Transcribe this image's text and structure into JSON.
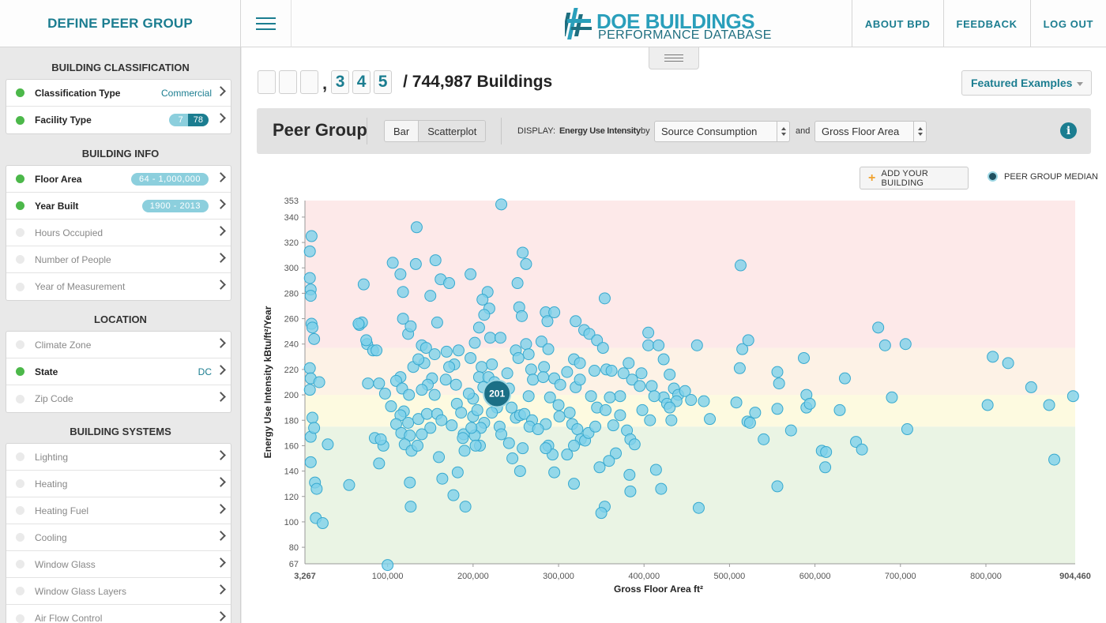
{
  "header": {
    "left_title": "DEFINE PEER GROUP",
    "logo_line1": "DOE BUILDINGS",
    "logo_line2": "PERFORMANCE DATABASE",
    "nav": [
      "ABOUT BPD",
      "FEEDBACK",
      "LOG OUT"
    ]
  },
  "sidebar": {
    "sections": [
      {
        "title": "BUILDING CLASSIFICATION",
        "items": [
          {
            "label": "Classification Type",
            "active": true,
            "value": "Commercial"
          },
          {
            "label": "Facility Type",
            "active": true,
            "pill_a": "7",
            "pill_b": "78"
          }
        ]
      },
      {
        "title": "BUILDING INFO",
        "items": [
          {
            "label": "Floor Area",
            "active": true,
            "pill": "64 - 1,000,000"
          },
          {
            "label": "Year Built",
            "active": true,
            "pill": "1900 - 2013"
          },
          {
            "label": "Hours Occupied",
            "active": false
          },
          {
            "label": "Number of People",
            "active": false
          },
          {
            "label": "Year of Measurement",
            "active": false
          }
        ]
      },
      {
        "title": "LOCATION",
        "items": [
          {
            "label": "Climate Zone",
            "active": false
          },
          {
            "label": "State",
            "active": true,
            "value": "DC"
          },
          {
            "label": "Zip Code",
            "active": false
          }
        ]
      },
      {
        "title": "BUILDING SYSTEMS",
        "items": [
          {
            "label": "Lighting",
            "active": false
          },
          {
            "label": "Heating",
            "active": false
          },
          {
            "label": "Heating Fuel",
            "active": false
          },
          {
            "label": "Cooling",
            "active": false
          },
          {
            "label": "Window Glass",
            "active": false
          },
          {
            "label": "Window Glass Layers",
            "active": false
          },
          {
            "label": "Air Flow Control",
            "active": false
          }
        ]
      }
    ]
  },
  "counter": {
    "digits": [
      "",
      "",
      "",
      "3",
      "4",
      "5"
    ],
    "total": "/ 744,987 Buildings"
  },
  "featured_examples": "Featured Examples",
  "toolbar": {
    "title": "Peer Group",
    "bar_label": "Bar",
    "scatter_label": "Scatterplot",
    "display_label": "DISPLAY:",
    "metric": "Energy Use Intensity",
    "by": "by",
    "select1": "Source Consumption",
    "and": "and",
    "select2": "Gross Floor Area",
    "info": "i"
  },
  "add_building": "ADD YOUR BUILDING",
  "legend_label": "PEER GROUP MEDIAN",
  "chart_data": {
    "type": "scatter",
    "xlabel": "Gross Floor Area ft²",
    "ylabel": "Energy Use Intensity kBtu/ft²/Year",
    "xlim": [
      3267,
      904460
    ],
    "ylim": [
      67,
      353
    ],
    "x_ticks": [
      100000,
      200000,
      300000,
      400000,
      500000,
      600000,
      700000,
      800000
    ],
    "x_tick_labels": [
      "100,000",
      "200,000",
      "300,000",
      "400,000",
      "500,000",
      "600,000",
      "700,000",
      "800,000"
    ],
    "x_end_labels": [
      "3,267",
      "904,460"
    ],
    "y_ticks": [
      80,
      100,
      120,
      140,
      160,
      180,
      200,
      220,
      240,
      260,
      280,
      300,
      320,
      340
    ],
    "y_end_labels": [
      "67",
      "353"
    ],
    "bands": [
      {
        "from": 67,
        "to": 175,
        "color": "#eaf4e4"
      },
      {
        "from": 175,
        "to": 200,
        "color": "#fdfae0"
      },
      {
        "from": 200,
        "to": 237,
        "color": "#fdf2e6"
      },
      {
        "from": 237,
        "to": 353,
        "color": "#fde9e9"
      }
    ],
    "point_color": "#7ed1ea",
    "point_stroke": "#37a9cf",
    "median": {
      "x": 228000,
      "y": 201,
      "label": "201",
      "color": "#1b6f86"
    },
    "points": [
      [
        9000,
        313
      ],
      [
        11000,
        325
      ],
      [
        9000,
        292
      ],
      [
        10000,
        283
      ],
      [
        10000,
        278
      ],
      [
        11000,
        256
      ],
      [
        12000,
        253
      ],
      [
        14000,
        244
      ],
      [
        9000,
        221
      ],
      [
        10000,
        213
      ],
      [
        9000,
        204
      ],
      [
        20000,
        210
      ],
      [
        12000,
        182
      ],
      [
        10000,
        167
      ],
      [
        14000,
        174
      ],
      [
        10000,
        147
      ],
      [
        15000,
        131
      ],
      [
        17000,
        126
      ],
      [
        16000,
        103
      ],
      [
        24000,
        99
      ],
      [
        30000,
        161
      ],
      [
        55000,
        129
      ],
      [
        72000,
        287
      ],
      [
        67000,
        255
      ],
      [
        70000,
        257
      ],
      [
        76000,
        240
      ],
      [
        83000,
        235
      ],
      [
        87000,
        235
      ],
      [
        77000,
        209
      ],
      [
        90000,
        209
      ],
      [
        97000,
        201
      ],
      [
        95000,
        160
      ],
      [
        85000,
        166
      ],
      [
        92000,
        165
      ],
      [
        90000,
        146
      ],
      [
        106000,
        304
      ],
      [
        115000,
        295
      ],
      [
        118000,
        281
      ],
      [
        133000,
        303
      ],
      [
        134000,
        332
      ],
      [
        124000,
        248
      ],
      [
        127000,
        254
      ],
      [
        140000,
        239
      ],
      [
        130000,
        222
      ],
      [
        115000,
        214
      ],
      [
        110000,
        211
      ],
      [
        117000,
        205
      ],
      [
        125000,
        200
      ],
      [
        119000,
        187
      ],
      [
        115000,
        184
      ],
      [
        124000,
        178
      ],
      [
        110000,
        177
      ],
      [
        116000,
        170
      ],
      [
        126000,
        168
      ],
      [
        120000,
        161
      ],
      [
        128000,
        156
      ],
      [
        104000,
        191
      ],
      [
        126000,
        131
      ],
      [
        127000,
        112
      ],
      [
        100000,
        66
      ],
      [
        156000,
        306
      ],
      [
        150000,
        278
      ],
      [
        162000,
        291
      ],
      [
        172000,
        288
      ],
      [
        145000,
        237
      ],
      [
        155000,
        232
      ],
      [
        158000,
        257
      ],
      [
        143000,
        225
      ],
      [
        136000,
        228
      ],
      [
        152000,
        213
      ],
      [
        147000,
        208
      ],
      [
        140000,
        204
      ],
      [
        155000,
        200
      ],
      [
        136000,
        181
      ],
      [
        150000,
        174
      ],
      [
        140000,
        169
      ],
      [
        146000,
        185
      ],
      [
        158000,
        185
      ],
      [
        163000,
        180
      ],
      [
        135000,
        160
      ],
      [
        160000,
        151
      ],
      [
        164000,
        134
      ],
      [
        169000,
        234
      ],
      [
        183000,
        235
      ],
      [
        178000,
        224
      ],
      [
        172000,
        222
      ],
      [
        168000,
        212
      ],
      [
        180000,
        208
      ],
      [
        181000,
        193
      ],
      [
        186000,
        186
      ],
      [
        175000,
        176
      ],
      [
        189000,
        169
      ],
      [
        200000,
        183
      ],
      [
        182000,
        139
      ],
      [
        177000,
        121
      ],
      [
        191000,
        112
      ],
      [
        197000,
        295
      ],
      [
        217000,
        281
      ],
      [
        211000,
        275
      ],
      [
        219000,
        268
      ],
      [
        207000,
        253
      ],
      [
        213000,
        263
      ],
      [
        220000,
        245
      ],
      [
        202000,
        241
      ],
      [
        197000,
        229
      ],
      [
        210000,
        222
      ],
      [
        207000,
        214
      ],
      [
        212000,
        206
      ],
      [
        200000,
        197
      ],
      [
        205000,
        188
      ],
      [
        195000,
        201
      ],
      [
        222000,
        224
      ],
      [
        218000,
        214
      ],
      [
        225000,
        210
      ],
      [
        232000,
        200
      ],
      [
        228000,
        190
      ],
      [
        222000,
        186
      ],
      [
        213000,
        178
      ],
      [
        209000,
        174
      ],
      [
        202000,
        168
      ],
      [
        208000,
        160
      ],
      [
        188000,
        166
      ],
      [
        198000,
        174
      ],
      [
        231000,
        175
      ],
      [
        233000,
        169
      ],
      [
        240000,
        217
      ],
      [
        250000,
        235
      ],
      [
        242000,
        205
      ],
      [
        245000,
        190
      ],
      [
        250000,
        182
      ],
      [
        246000,
        150
      ],
      [
        255000,
        140
      ],
      [
        258000,
        158
      ],
      [
        233000,
        350
      ],
      [
        258000,
        312
      ],
      [
        262000,
        303
      ],
      [
        252000,
        288
      ],
      [
        254000,
        269
      ],
      [
        257000,
        262
      ],
      [
        262000,
        240
      ],
      [
        265000,
        232
      ],
      [
        253000,
        229
      ],
      [
        268000,
        220
      ],
      [
        270000,
        212
      ],
      [
        265000,
        199
      ],
      [
        255000,
        184
      ],
      [
        260000,
        185
      ],
      [
        269000,
        180
      ],
      [
        285000,
        265
      ],
      [
        287000,
        258
      ],
      [
        295000,
        265
      ],
      [
        280000,
        242
      ],
      [
        288000,
        236
      ],
      [
        283000,
        222
      ],
      [
        282000,
        214
      ],
      [
        295000,
        213
      ],
      [
        290000,
        198
      ],
      [
        302000,
        208
      ],
      [
        285000,
        177
      ],
      [
        288000,
        160
      ],
      [
        293000,
        153
      ],
      [
        295000,
        139
      ],
      [
        285000,
        158
      ],
      [
        300000,
        192
      ],
      [
        313000,
        186
      ],
      [
        310000,
        218
      ],
      [
        318000,
        228
      ],
      [
        325000,
        225
      ],
      [
        320000,
        206
      ],
      [
        316000,
        177
      ],
      [
        322000,
        173
      ],
      [
        326000,
        165
      ],
      [
        331000,
        164
      ],
      [
        310000,
        153
      ],
      [
        318000,
        160
      ],
      [
        335000,
        170
      ],
      [
        345000,
        190
      ],
      [
        343000,
        175
      ],
      [
        348000,
        143
      ],
      [
        318000,
        130
      ],
      [
        320000,
        258
      ],
      [
        330000,
        251
      ],
      [
        336000,
        248
      ],
      [
        345000,
        243
      ],
      [
        352000,
        237
      ],
      [
        342000,
        219
      ],
      [
        356000,
        220
      ],
      [
        325000,
        212
      ],
      [
        354000,
        276
      ],
      [
        355000,
        188
      ],
      [
        364000,
        176
      ],
      [
        372000,
        199
      ],
      [
        367000,
        154
      ],
      [
        359000,
        148
      ],
      [
        354000,
        112
      ],
      [
        350000,
        107
      ],
      [
        372000,
        184
      ],
      [
        382000,
        225
      ],
      [
        386000,
        212
      ],
      [
        380000,
        172
      ],
      [
        384000,
        165
      ],
      [
        389000,
        161
      ],
      [
        383000,
        137
      ],
      [
        384000,
        124
      ],
      [
        398000,
        188
      ],
      [
        409000,
        207
      ],
      [
        423000,
        198
      ],
      [
        427000,
        193
      ],
      [
        412000,
        199
      ],
      [
        407000,
        180
      ],
      [
        414000,
        141
      ],
      [
        420000,
        126
      ],
      [
        435000,
        205
      ],
      [
        440000,
        200
      ],
      [
        438000,
        195
      ],
      [
        430000,
        190
      ],
      [
        432000,
        180
      ],
      [
        405000,
        249
      ],
      [
        405000,
        239
      ],
      [
        417000,
        239
      ],
      [
        397000,
        217
      ],
      [
        395000,
        207
      ],
      [
        464000,
        111
      ],
      [
        462000,
        239
      ],
      [
        423000,
        228
      ],
      [
        430000,
        216
      ],
      [
        448000,
        203
      ],
      [
        455000,
        196
      ],
      [
        477000,
        181
      ],
      [
        470000,
        195
      ],
      [
        513000,
        302
      ],
      [
        515000,
        236
      ],
      [
        522000,
        243
      ],
      [
        512000,
        221
      ],
      [
        508000,
        194
      ],
      [
        521000,
        179
      ],
      [
        524000,
        178
      ],
      [
        530000,
        186
      ],
      [
        540000,
        165
      ],
      [
        556000,
        218
      ],
      [
        558000,
        209
      ],
      [
        556000,
        189
      ],
      [
        556000,
        128
      ],
      [
        572000,
        172
      ],
      [
        587000,
        229
      ],
      [
        590000,
        200
      ],
      [
        590000,
        190
      ],
      [
        594000,
        193
      ],
      [
        608000,
        156
      ],
      [
        613000,
        155
      ],
      [
        612000,
        143
      ],
      [
        635000,
        213
      ],
      [
        629000,
        188
      ],
      [
        648000,
        163
      ],
      [
        655000,
        157
      ],
      [
        674000,
        253
      ],
      [
        682000,
        239
      ],
      [
        690000,
        198
      ],
      [
        706000,
        240
      ],
      [
        708000,
        173
      ],
      [
        802000,
        192
      ],
      [
        808000,
        230
      ],
      [
        826000,
        225
      ],
      [
        853000,
        206
      ],
      [
        874000,
        192
      ],
      [
        880000,
        149
      ],
      [
        902000,
        199
      ],
      [
        66000,
        256
      ],
      [
        75000,
        243
      ],
      [
        118000,
        260
      ],
      [
        190000,
        156
      ],
      [
        203000,
        160
      ],
      [
        232000,
        245
      ],
      [
        242000,
        162
      ],
      [
        266000,
        175
      ],
      [
        276000,
        173
      ],
      [
        301000,
        183
      ],
      [
        338000,
        199
      ],
      [
        360000,
        198
      ],
      [
        362000,
        219
      ],
      [
        376000,
        217
      ]
    ]
  }
}
